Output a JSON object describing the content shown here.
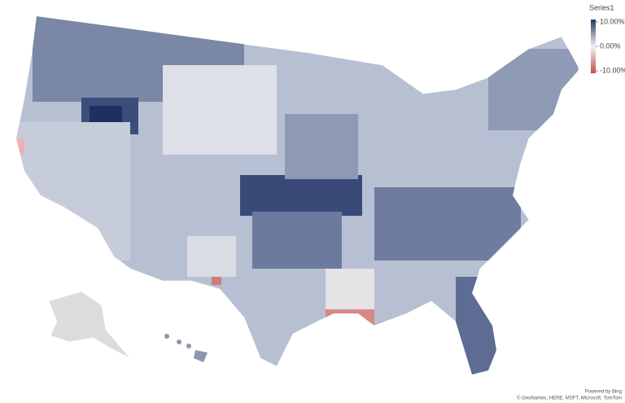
{
  "legend": {
    "title": "Series1",
    "ticks": [
      {
        "value": 10,
        "label": "10.00%"
      },
      {
        "value": 0,
        "label": "0.00%"
      },
      {
        "value": -10,
        "label": "-10.00%"
      }
    ],
    "colors": [
      "#1f3864",
      "#f2f2f2",
      "#c0504d"
    ]
  },
  "attribution": {
    "powered_by": "Powered by Bing",
    "credits": "© GeoNames, HERE, MSFT, Microsoft, TomTom"
  }
}
